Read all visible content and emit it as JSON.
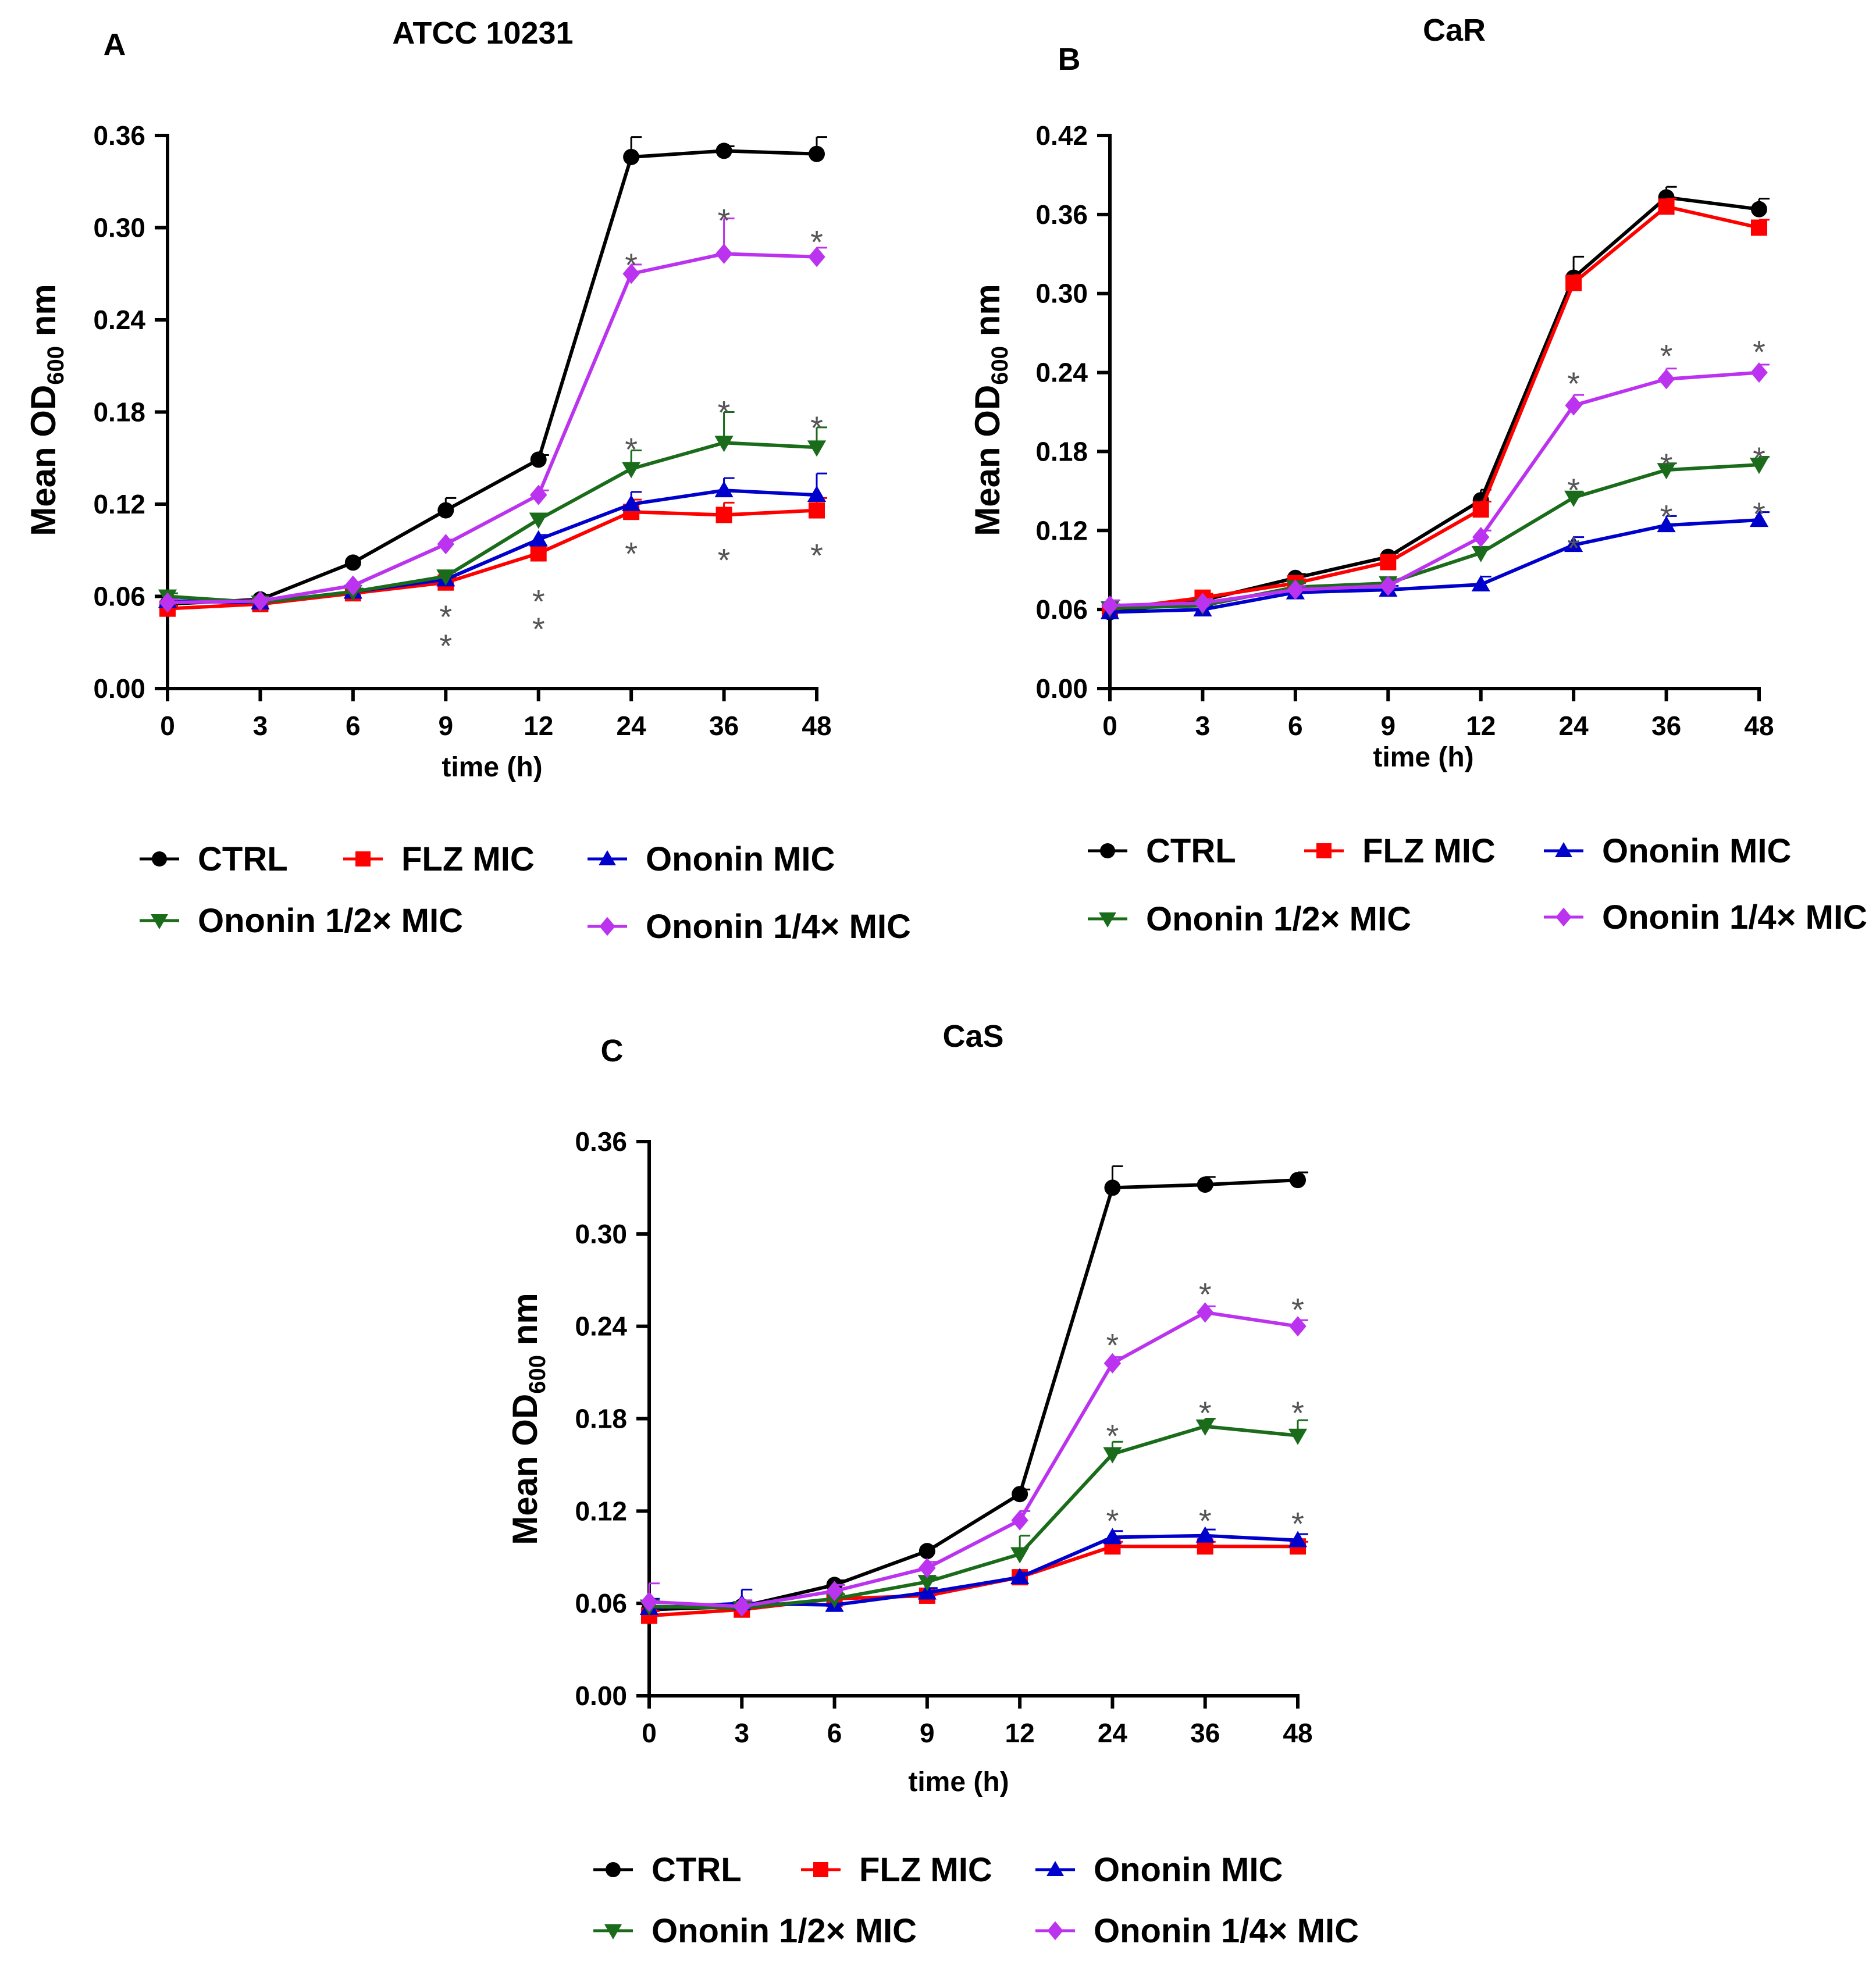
{
  "figure": {
    "ylabel_prefix": "Mean OD",
    "ylabel_sub": "600",
    "ylabel_suffix": " nm"
  },
  "legend": {
    "entries": [
      {
        "name": "CTRL",
        "color": "#000000",
        "marker": "circle"
      },
      {
        "name": "FLZ MIC",
        "color": "#ff0000",
        "marker": "square"
      },
      {
        "name": "Ononin MIC",
        "color": "#0000cc",
        "marker": "triangle-up"
      },
      {
        "name": "Ononin 1/2× MIC",
        "color": "#1a6b1a",
        "marker": "triangle-down"
      },
      {
        "name": "Ononin 1/4× MIC",
        "color": "#bb33ee",
        "marker": "diamond"
      }
    ]
  },
  "chart_data": [
    {
      "type": "line",
      "letter": "A",
      "title": "ATCC 10231",
      "xlabel": "time (h)",
      "ylabel": "Mean OD600 nm",
      "categories": [
        "0",
        "3",
        "6",
        "9",
        "12",
        "24",
        "36",
        "48"
      ],
      "ylim": [
        0,
        0.36
      ],
      "yticks": [
        "0.00",
        "0.06",
        "0.12",
        "0.18",
        "0.24",
        "0.30",
        "0.36"
      ],
      "series": [
        {
          "name": "CTRL",
          "values": [
            0.055,
            0.058,
            0.082,
            0.116,
            0.149,
            0.346,
            0.35,
            0.348
          ],
          "err": [
            0.003,
            0.003,
            0.003,
            0.008,
            0.003,
            0.013,
            0.003,
            0.011
          ]
        },
        {
          "name": "FLZ MIC",
          "values": [
            0.052,
            0.055,
            0.062,
            0.069,
            0.088,
            0.115,
            0.113,
            0.116
          ],
          "err": [
            0.002,
            0.002,
            0.002,
            0.003,
            0.003,
            0.008,
            0.008,
            0.008
          ]
        },
        {
          "name": "Ononin MIC",
          "values": [
            0.057,
            0.056,
            0.063,
            0.071,
            0.097,
            0.12,
            0.129,
            0.126
          ],
          "err": [
            0.002,
            0.002,
            0.002,
            0.002,
            0.003,
            0.008,
            0.008,
            0.014
          ]
        },
        {
          "name": "Ononin 1/2× MIC",
          "values": [
            0.06,
            0.056,
            0.063,
            0.073,
            0.11,
            0.143,
            0.16,
            0.157
          ],
          "err": [
            0.002,
            0.002,
            0.002,
            0.003,
            0.003,
            0.012,
            0.02,
            0.013
          ]
        },
        {
          "name": "Ononin 1/4× MIC",
          "values": [
            0.056,
            0.057,
            0.067,
            0.094,
            0.126,
            0.27,
            0.283,
            0.281
          ],
          "err": [
            0.002,
            0.002,
            0.002,
            0.003,
            0.003,
            0.006,
            0.023,
            0.006
          ]
        }
      ],
      "annotations": [
        {
          "x": "9",
          "y": 0.053,
          "text": "*"
        },
        {
          "x": "9",
          "y": 0.034,
          "text": "*"
        },
        {
          "x": "12",
          "y": 0.063,
          "text": "*"
        },
        {
          "x": "12",
          "y": 0.045,
          "text": "*"
        },
        {
          "x": "24",
          "y": 0.282,
          "text": "*"
        },
        {
          "x": "24",
          "y": 0.162,
          "text": "*"
        },
        {
          "x": "24",
          "y": 0.094,
          "text": "*"
        },
        {
          "x": "36",
          "y": 0.311,
          "text": "*"
        },
        {
          "x": "36",
          "y": 0.186,
          "text": "*"
        },
        {
          "x": "36",
          "y": 0.09,
          "text": "*"
        },
        {
          "x": "48",
          "y": 0.297,
          "text": "*"
        },
        {
          "x": "48",
          "y": 0.176,
          "text": "*"
        },
        {
          "x": "48",
          "y": 0.093,
          "text": "*"
        }
      ]
    },
    {
      "type": "line",
      "letter": "B",
      "title": "CaR",
      "xlabel": "time (h)",
      "ylabel": "Mean OD600 nm",
      "categories": [
        "0",
        "3",
        "6",
        "9",
        "12",
        "24",
        "36",
        "48"
      ],
      "ylim": [
        0,
        0.42
      ],
      "yticks": [
        "0.00",
        "0.06",
        "0.12",
        "0.18",
        "0.24",
        "0.30",
        "0.36",
        "0.42"
      ],
      "series": [
        {
          "name": "CTRL",
          "values": [
            0.058,
            0.067,
            0.084,
            0.1,
            0.143,
            0.312,
            0.373,
            0.364
          ],
          "err": [
            0.003,
            0.003,
            0.003,
            0.003,
            0.008,
            0.016,
            0.008,
            0.008
          ]
        },
        {
          "name": "FLZ MIC",
          "values": [
            0.06,
            0.069,
            0.08,
            0.096,
            0.136,
            0.308,
            0.366,
            0.35
          ],
          "err": [
            0.003,
            0.003,
            0.003,
            0.003,
            0.006,
            0.006,
            0.006,
            0.006
          ]
        },
        {
          "name": "Ononin MIC",
          "values": [
            0.058,
            0.06,
            0.073,
            0.075,
            0.079,
            0.109,
            0.124,
            0.128
          ],
          "err": [
            0.003,
            0.003,
            0.003,
            0.003,
            0.006,
            0.006,
            0.007,
            0.006
          ]
        },
        {
          "name": "Ononin 1/2× MIC",
          "values": [
            0.061,
            0.063,
            0.077,
            0.08,
            0.103,
            0.145,
            0.166,
            0.17
          ],
          "err": [
            0.003,
            0.003,
            0.003,
            0.003,
            0.004,
            0.004,
            0.005,
            0.006
          ]
        },
        {
          "name": "Ononin 1/4× MIC",
          "values": [
            0.063,
            0.065,
            0.075,
            0.078,
            0.115,
            0.215,
            0.235,
            0.24
          ],
          "err": [
            0.004,
            0.003,
            0.003,
            0.003,
            0.005,
            0.008,
            0.008,
            0.006
          ]
        }
      ],
      "annotations": [
        {
          "x": "24",
          "y": 0.239,
          "text": "*"
        },
        {
          "x": "24",
          "y": 0.158,
          "text": "*"
        },
        {
          "x": "24",
          "y": 0.114,
          "text": "*"
        },
        {
          "x": "36",
          "y": 0.26,
          "text": "*"
        },
        {
          "x": "36",
          "y": 0.177,
          "text": "*"
        },
        {
          "x": "36",
          "y": 0.138,
          "text": "*"
        },
        {
          "x": "48",
          "y": 0.263,
          "text": "*"
        },
        {
          "x": "48",
          "y": 0.182,
          "text": "*"
        },
        {
          "x": "48",
          "y": 0.14,
          "text": "*"
        }
      ]
    },
    {
      "type": "line",
      "letter": "C",
      "title": "CaS",
      "xlabel": "time (h)",
      "ylabel": "Mean OD600 nm",
      "categories": [
        "0",
        "3",
        "6",
        "9",
        "12",
        "24",
        "36",
        "48"
      ],
      "ylim": [
        0,
        0.36
      ],
      "yticks": [
        "0.00",
        "0.06",
        "0.12",
        "0.18",
        "0.24",
        "0.30",
        "0.36"
      ],
      "series": [
        {
          "name": "CTRL",
          "values": [
            0.056,
            0.058,
            0.072,
            0.094,
            0.131,
            0.33,
            0.332,
            0.335
          ],
          "err": [
            0.006,
            0.003,
            0.003,
            0.003,
            0.003,
            0.014,
            0.005,
            0.005
          ]
        },
        {
          "name": "FLZ MIC",
          "values": [
            0.052,
            0.056,
            0.063,
            0.065,
            0.077,
            0.097,
            0.097,
            0.097
          ],
          "err": [
            0.003,
            0.003,
            0.003,
            0.003,
            0.003,
            0.003,
            0.003,
            0.003
          ]
        },
        {
          "name": "Ononin MIC",
          "values": [
            0.057,
            0.06,
            0.059,
            0.067,
            0.077,
            0.103,
            0.104,
            0.101
          ],
          "err": [
            0.006,
            0.009,
            0.005,
            0.003,
            0.003,
            0.004,
            0.004,
            0.004
          ]
        },
        {
          "name": "Ononin 1/2× MIC",
          "values": [
            0.058,
            0.057,
            0.063,
            0.074,
            0.092,
            0.157,
            0.175,
            0.169
          ],
          "err": [
            0.004,
            0.004,
            0.003,
            0.003,
            0.012,
            0.008,
            0.005,
            0.01
          ]
        },
        {
          "name": "Ononin 1/4× MIC",
          "values": [
            0.061,
            0.058,
            0.068,
            0.083,
            0.114,
            0.216,
            0.249,
            0.24
          ],
          "err": [
            0.012,
            0.004,
            0.004,
            0.004,
            0.006,
            0.004,
            0.004,
            0.004
          ]
        }
      ],
      "annotations": [
        {
          "x": "24",
          "y": 0.234,
          "text": "*"
        },
        {
          "x": "24",
          "y": 0.175,
          "text": "*"
        },
        {
          "x": "24",
          "y": 0.12,
          "text": "*"
        },
        {
          "x": "36",
          "y": 0.267,
          "text": "*"
        },
        {
          "x": "36",
          "y": 0.19,
          "text": "*"
        },
        {
          "x": "36",
          "y": 0.12,
          "text": "*"
        },
        {
          "x": "48",
          "y": 0.257,
          "text": "*"
        },
        {
          "x": "48",
          "y": 0.19,
          "text": "*"
        },
        {
          "x": "48",
          "y": 0.118,
          "text": "*"
        }
      ]
    }
  ]
}
